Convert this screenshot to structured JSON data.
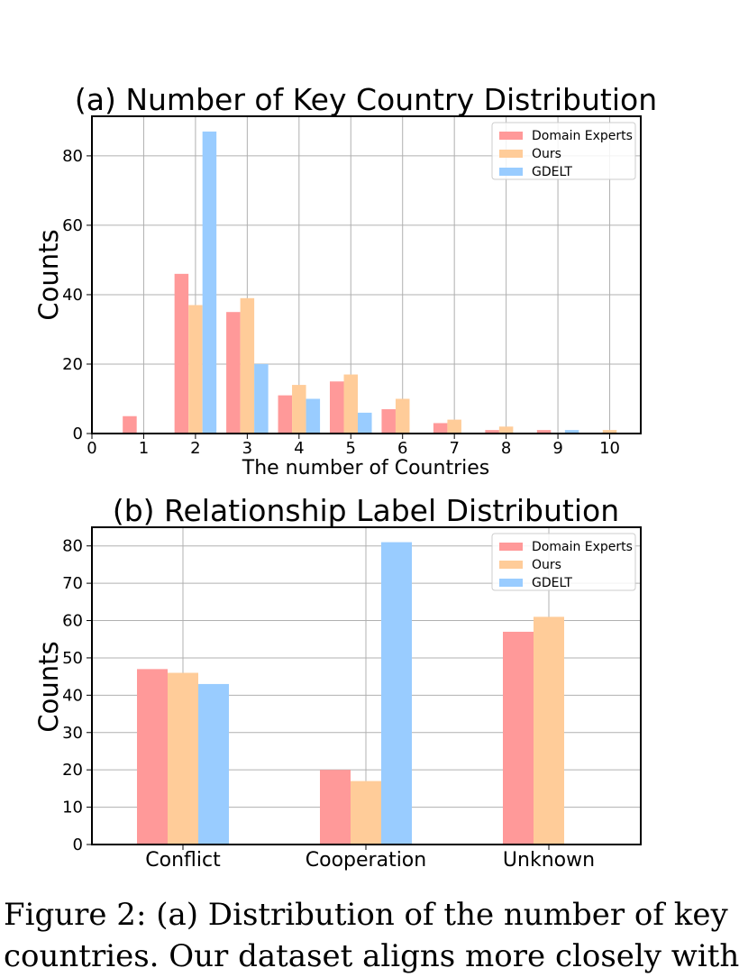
{
  "colors": {
    "Domain Experts": "#ff9999",
    "Ours": "#ffcc99",
    "GDELT": "#99ccff"
  },
  "chart_data": [
    {
      "type": "bar",
      "title": "(a) Number of Key Country Distribution",
      "xlabel": "The number of Countries",
      "ylabel": "Counts",
      "categories": [
        1,
        2,
        3,
        4,
        5,
        6,
        7,
        8,
        9,
        10
      ],
      "series": [
        {
          "name": "Domain Experts",
          "values": [
            5,
            46,
            35,
            11,
            15,
            7,
            3,
            1,
            1,
            0
          ]
        },
        {
          "name": "Ours",
          "values": [
            0,
            37,
            39,
            14,
            17,
            10,
            4,
            2,
            0,
            1
          ]
        },
        {
          "name": "GDELT",
          "values": [
            0,
            87,
            20,
            10,
            6,
            0,
            0,
            0,
            1,
            0
          ]
        }
      ],
      "xticks": [
        0,
        1,
        2,
        3,
        4,
        5,
        6,
        7,
        8,
        9,
        10
      ],
      "yticks": [
        0,
        20,
        40,
        60,
        80
      ],
      "ylim": [
        0,
        91.4
      ],
      "xlim": [
        0,
        10.6
      ],
      "grid": true,
      "legend": "top-right"
    },
    {
      "type": "bar",
      "title": "(b) Relationship Label Distribution",
      "xlabel": "",
      "ylabel": "Counts",
      "categories": [
        "Conflict",
        "Cooperation",
        "Unknown"
      ],
      "series": [
        {
          "name": "Domain Experts",
          "values": [
            47,
            20,
            57
          ]
        },
        {
          "name": "Ours",
          "values": [
            46,
            17,
            61
          ]
        },
        {
          "name": "GDELT",
          "values": [
            43,
            81,
            0
          ]
        }
      ],
      "yticks": [
        0,
        10,
        20,
        30,
        40,
        50,
        60,
        70,
        80
      ],
      "ylim": [
        0,
        85
      ],
      "grid": true,
      "legend": "top-right"
    }
  ],
  "caption": {
    "line1": "Figure 2:  (a) Distribution of the number of key",
    "line2": "countries.  Our dataset aligns more closely with"
  }
}
